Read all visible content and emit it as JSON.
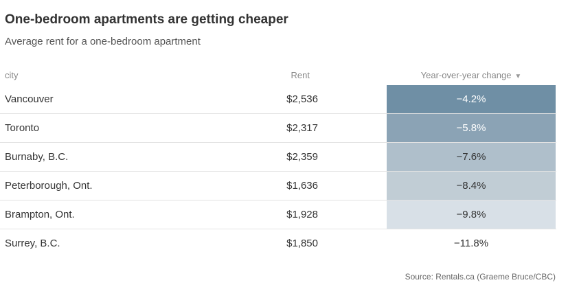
{
  "title": "One-bedroom apartments are getting cheaper",
  "subtitle": "Average rent for a one-bedroom apartment",
  "columns": {
    "city": "city",
    "rent": "Rent",
    "change": "Year-over-year change",
    "sort_icon": "▼"
  },
  "source": "Source: Rentals.ca (Graeme Bruce/CBC)",
  "colors": {
    "heat": [
      "#6f8fa5",
      "#8ba3b5",
      "#afbfcb",
      "#c1cdd5",
      "#d8e0e7",
      "#ffffff"
    ],
    "dark_text": "#ffffff",
    "light_text": "#333333"
  },
  "chart_data": {
    "type": "table",
    "columns": [
      "city",
      "Rent",
      "Year-over-year change"
    ],
    "rows": [
      {
        "city": "Vancouver",
        "rent": "$2,536",
        "change": "−4.2%",
        "change_value": -4.2
      },
      {
        "city": "Toronto",
        "rent": "$2,317",
        "change": "−5.8%",
        "change_value": -5.8
      },
      {
        "city": "Burnaby, B.C.",
        "rent": "$2,359",
        "change": "−7.6%",
        "change_value": -7.6
      },
      {
        "city": "Peterborough, Ont.",
        "rent": "$1,636",
        "change": "−8.4%",
        "change_value": -8.4
      },
      {
        "city": "Brampton, Ont.",
        "rent": "$1,928",
        "change": "−9.8%",
        "change_value": -9.8
      },
      {
        "city": "Surrey, B.C.",
        "rent": "$1,850",
        "change": "−11.8%",
        "change_value": -11.8
      }
    ],
    "sorted_by": "Year-over-year change"
  }
}
